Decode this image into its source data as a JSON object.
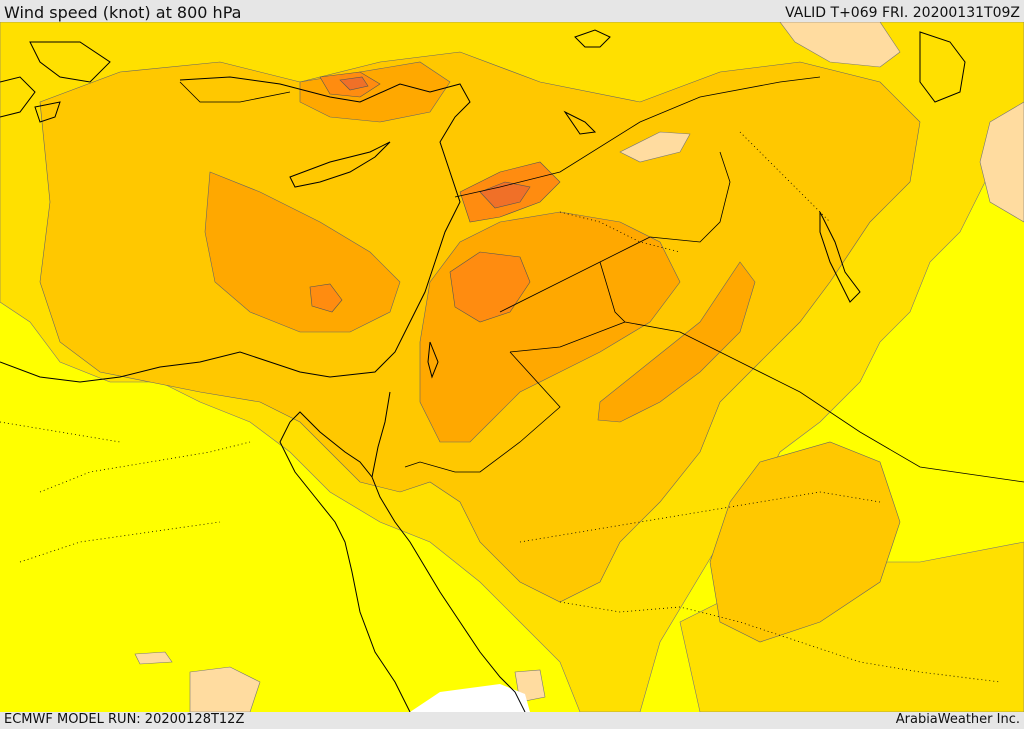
{
  "header": {
    "title": "Wind speed (knot) at 800 hPa",
    "valid": "VALID T+069 FRI. 20200131T09Z"
  },
  "footer": {
    "model_run": "ECMWF MODEL RUN: 20200128T12Z",
    "credit": "ArabiaWeather Inc."
  },
  "map": {
    "region": "Eastern Mediterranean / Middle East",
    "field": "wind speed",
    "colors": {
      "level_1": "#ffff00",
      "level_2": "#ffe000",
      "level_3": "#ffc800",
      "level_4": "#ffa800",
      "level_5": "#ff8c10",
      "level_6": "#f07028",
      "calm": "#ffdca0",
      "missing": "#ffffff",
      "coast": "#000000",
      "border": "#000000"
    }
  }
}
